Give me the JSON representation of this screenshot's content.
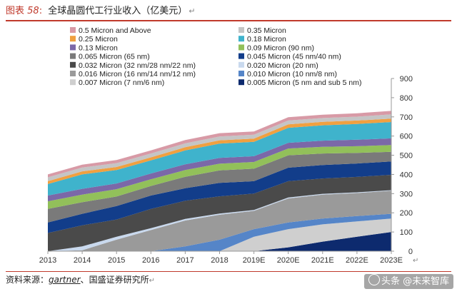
{
  "header": {
    "figure_label": "图表",
    "figure_number": "58",
    "colon": ":",
    "title": "全球晶圆代工行业收入（亿美元）",
    "mark": "↵"
  },
  "footer": {
    "source_prefix": "资料来源：",
    "source_a": "gartner",
    "source_sep": "、",
    "source_b": "国盛证券研究所",
    "mark": "↵"
  },
  "watermark": {
    "text": "头条 @未来智库"
  },
  "chart_data": {
    "type": "area",
    "stacked": true,
    "title": "",
    "xlabel": "",
    "ylabel": "",
    "x": [
      "2013",
      "2014",
      "2015",
      "2016",
      "2017",
      "2018",
      "2019E",
      "2020E",
      "2021E",
      "2022E",
      "2023E"
    ],
    "ylim": [
      0,
      900
    ],
    "yticks": [
      0,
      100,
      200,
      300,
      400,
      500,
      600,
      700,
      800,
      900
    ],
    "grid": false,
    "legend": "top-left, two columns",
    "axis_note": "↵",
    "series": [
      {
        "name": "0.005 Micron (5 nm and sub 5 nm)",
        "color": "#0d2a6e",
        "values": [
          0,
          0,
          0,
          0,
          0,
          0,
          0,
          20,
          50,
          75,
          100
        ]
      },
      {
        "name": "0.007 Micron (7 nm/6 nm)",
        "color": "#cfcfcf",
        "values": [
          0,
          0,
          0,
          0,
          0,
          0,
          75,
          95,
          90,
          80,
          70
        ]
      },
      {
        "name": "0.010 Micron (10 nm/8 nm)",
        "color": "#5585c8",
        "values": [
          0,
          0,
          0,
          0,
          25,
          60,
          40,
          35,
          30,
          28,
          25
        ]
      },
      {
        "name": "0.016 Micron (16 nm/14 nm/12 nm)",
        "color": "#9a9a9a",
        "values": [
          0,
          5,
          60,
          110,
          135,
          130,
          95,
          125,
          125,
          120,
          120
        ]
      },
      {
        "name": "0.020 Micron (20 nm)",
        "color": "#c9d9ee",
        "values": [
          0,
          20,
          15,
          10,
          8,
          6,
          5,
          5,
          4,
          4,
          3
        ]
      },
      {
        "name": "0.032 Micron (32 nm/28 nm/22 nm)",
        "color": "#4a4a4a",
        "values": [
          95,
          110,
          90,
          100,
          95,
          90,
          85,
          85,
          80,
          80,
          80
        ]
      },
      {
        "name": "0.045 Micron (45 nm/40 nm)",
        "color": "#123d8a",
        "values": [
          55,
          60,
          70,
          70,
          65,
          70,
          65,
          70,
          70,
          70,
          70
        ]
      },
      {
        "name": "0.065 Micron (65 nm)",
        "color": "#7a7a7a",
        "values": [
          70,
          60,
          50,
          50,
          60,
          65,
          65,
          65,
          60,
          55,
          50
        ]
      },
      {
        "name": "0.09 Micron (90 nm)",
        "color": "#92c05a",
        "values": [
          40,
          40,
          38,
          35,
          35,
          35,
          35,
          35,
          35,
          35,
          35
        ]
      },
      {
        "name": "0.13 Micron",
        "color": "#7b68a8",
        "values": [
          30,
          30,
          30,
          30,
          30,
          30,
          30,
          30,
          32,
          34,
          35
        ]
      },
      {
        "name": "0.18 Micron",
        "color": "#3fb3cc",
        "values": [
          60,
          75,
          70,
          68,
          72,
          75,
          75,
          78,
          80,
          82,
          85
        ]
      },
      {
        "name": "0.25 Micron",
        "color": "#f0a040",
        "values": [
          15,
          16,
          16,
          16,
          17,
          17,
          17,
          18,
          18,
          18,
          18
        ]
      },
      {
        "name": "0.35 Micron",
        "color": "#c5c5c5",
        "values": [
          20,
          20,
          20,
          20,
          20,
          20,
          20,
          20,
          20,
          20,
          22
        ]
      },
      {
        "name": "0.5 Micron and Above",
        "color": "#d89aa6",
        "values": [
          15,
          15,
          16,
          16,
          17,
          17,
          17,
          17,
          17,
          18,
          18
        ]
      }
    ],
    "legend_order": [
      "0.5 Micron and Above",
      "0.35 Micron",
      "0.25 Micron",
      "0.18 Micron",
      "0.13 Micron",
      "0.09 Micron  (90 nm)",
      "0.065 Micron (65 nm)",
      "0.045 Micron (45 nm/40 nm)",
      "0.032 Micron (32 nm/28 nm/22 nm)",
      "0.020 Micron (20 nm)",
      "0.016 Micron (16 nm/14 nm/12 nm)",
      "0.010 Micron (10 nm/8 nm)",
      "0.007 Micron (7 nm/6 nm)",
      "0.005 Micron (5 nm and sub 5 nm)"
    ],
    "legend_colors": [
      "#d89aa6",
      "#c5c5c5",
      "#f0a040",
      "#3fb3cc",
      "#7b68a8",
      "#92c05a",
      "#7a7a7a",
      "#123d8a",
      "#4a4a4a",
      "#c9d9ee",
      "#9a9a9a",
      "#5585c8",
      "#cfcfcf",
      "#0d2a6e"
    ]
  }
}
